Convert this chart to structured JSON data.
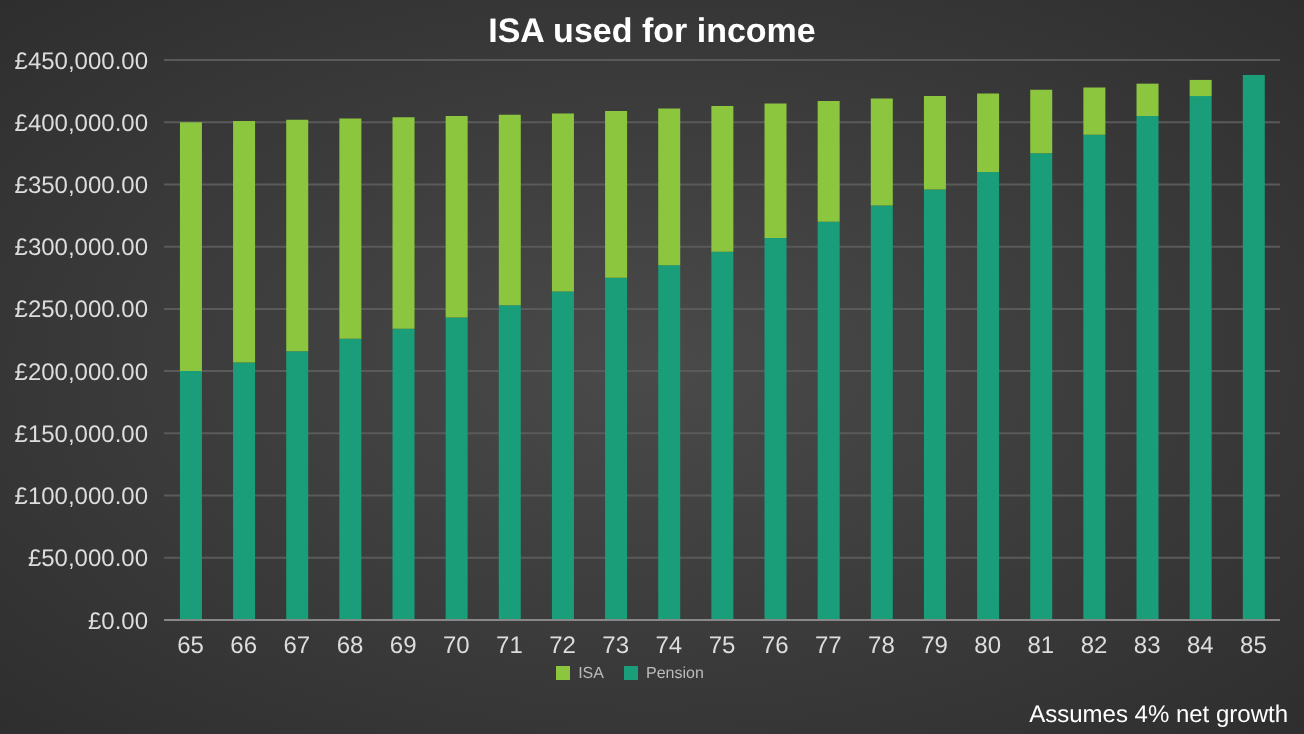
{
  "chart_data": {
    "type": "bar",
    "title": "ISA used for income",
    "stacked": true,
    "categories": [
      "65",
      "66",
      "67",
      "68",
      "69",
      "70",
      "71",
      "72",
      "73",
      "74",
      "75",
      "76",
      "77",
      "78",
      "79",
      "80",
      "81",
      "82",
      "83",
      "84",
      "85"
    ],
    "series": [
      {
        "name": "Pension",
        "color": "#1a9e7a",
        "values": [
          200000,
          207000,
          216000,
          226000,
          234000,
          243000,
          253000,
          264000,
          275000,
          285000,
          296000,
          307000,
          320000,
          333000,
          346000,
          360000,
          375000,
          390000,
          405000,
          421000,
          438000
        ]
      },
      {
        "name": "ISA",
        "color": "#8cc63f",
        "values": [
          200000,
          194000,
          186000,
          177000,
          170000,
          162000,
          153000,
          143000,
          134000,
          126000,
          117000,
          108000,
          97000,
          86000,
          75000,
          63000,
          51000,
          38000,
          26000,
          13000,
          0
        ]
      }
    ],
    "ylim": [
      0,
      450000
    ],
    "yticks": [
      {
        "value": 0,
        "label": "£0.00"
      },
      {
        "value": 50000,
        "label": "£50,000.00"
      },
      {
        "value": 100000,
        "label": "£100,000.00"
      },
      {
        "value": 150000,
        "label": "£150,000.00"
      },
      {
        "value": 200000,
        "label": "£200,000.00"
      },
      {
        "value": 250000,
        "label": "£250,000.00"
      },
      {
        "value": 300000,
        "label": "£300,000.00"
      },
      {
        "value": 350000,
        "label": "£350,000.00"
      },
      {
        "value": 400000,
        "label": "£400,000.00"
      },
      {
        "value": 450000,
        "label": "£450,000.00"
      }
    ],
    "grid": "y",
    "legend": "bottom",
    "annotations": [
      "Assumes 4% net growth"
    ]
  }
}
